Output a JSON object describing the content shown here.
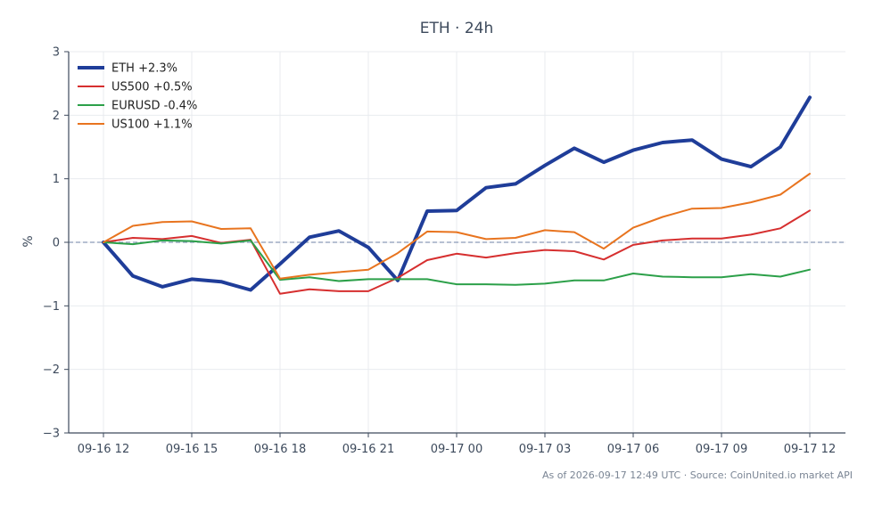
{
  "chart_data": {
    "type": "line",
    "title": "ETH · 24h",
    "xlabel": "",
    "ylabel": "%",
    "ylim": [
      -3,
      3
    ],
    "yticks": [
      3,
      2,
      1,
      0,
      -1,
      -2,
      -3
    ],
    "ytick_labels": [
      "3",
      "2",
      "1",
      "0",
      "−1",
      "−2",
      "−3"
    ],
    "x_count": 25,
    "xticks": [
      0,
      3,
      6,
      9,
      12,
      15,
      18,
      21,
      24
    ],
    "xtick_labels": [
      "09-16 12",
      "09-16 15",
      "09-16 18",
      "09-16 21",
      "09-17 00",
      "09-17 03",
      "09-17 06",
      "09-17 09",
      "09-17 12"
    ],
    "zero_line": true,
    "grid": true,
    "legend_position": "top-left",
    "series": [
      {
        "name": "ETH +2.3%",
        "color": "#1f3d99",
        "values": [
          0.0,
          -0.53,
          -0.7,
          -0.58,
          -0.62,
          -0.75,
          -0.34,
          0.08,
          0.18,
          -0.08,
          -0.6,
          0.49,
          0.5,
          0.86,
          0.92,
          1.21,
          1.48,
          1.26,
          1.45,
          1.57,
          1.61,
          1.31,
          1.19,
          1.5,
          2.28
        ]
      },
      {
        "name": "US500 +0.5%",
        "color": "#d62f2f",
        "values": [
          0.0,
          0.07,
          0.05,
          0.1,
          -0.01,
          0.04,
          -0.81,
          -0.74,
          -0.77,
          -0.77,
          -0.56,
          -0.28,
          -0.18,
          -0.24,
          -0.17,
          -0.12,
          -0.14,
          -0.27,
          -0.04,
          0.03,
          0.06,
          0.06,
          0.12,
          0.22,
          0.5
        ]
      },
      {
        "name": "EURUSD -0.4%",
        "color": "#2ca049",
        "values": [
          0.0,
          -0.03,
          0.03,
          0.02,
          -0.02,
          0.03,
          -0.59,
          -0.55,
          -0.61,
          -0.58,
          -0.58,
          -0.58,
          -0.66,
          -0.66,
          -0.67,
          -0.65,
          -0.6,
          -0.6,
          -0.49,
          -0.54,
          -0.55,
          -0.55,
          -0.5,
          -0.54,
          -0.43
        ]
      },
      {
        "name": "US100 +1.1%",
        "color": "#e8741f",
        "values": [
          0.0,
          0.26,
          0.32,
          0.33,
          0.21,
          0.22,
          -0.57,
          -0.51,
          -0.47,
          -0.43,
          -0.17,
          0.17,
          0.16,
          0.05,
          0.07,
          0.19,
          0.16,
          -0.1,
          0.23,
          0.4,
          0.53,
          0.54,
          0.63,
          0.75,
          1.08
        ]
      }
    ],
    "footer": "As of 2026-09-17 12:49 UTC · Source: CoinUnited.io market API"
  }
}
